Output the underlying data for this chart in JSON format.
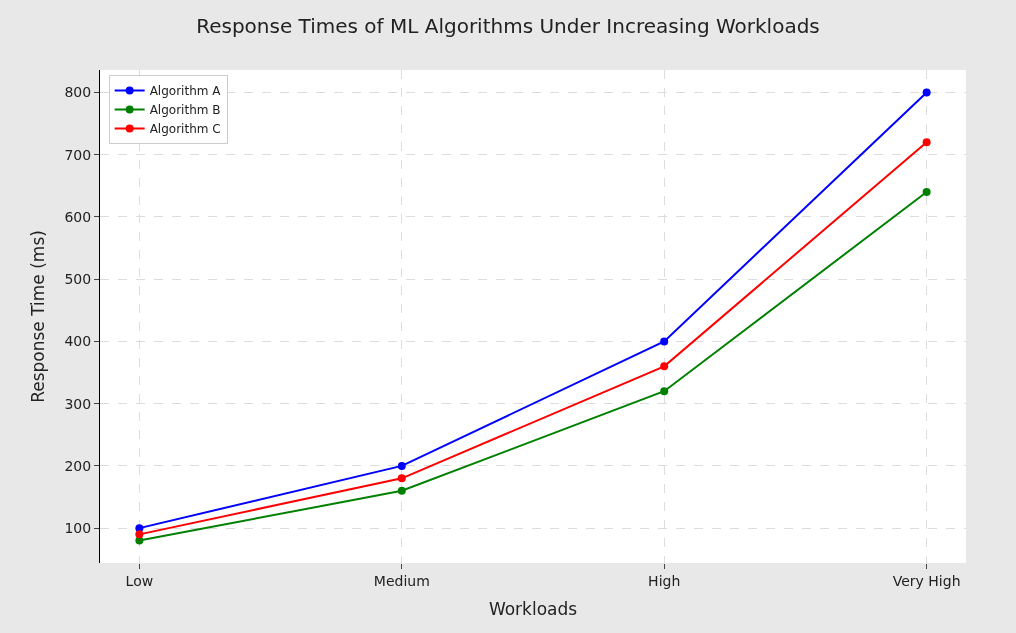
{
  "chart_data": {
    "type": "line",
    "title": "Response Times of ML Algorithms Under Increasing Workloads",
    "xlabel": "Workloads",
    "ylabel": "Response Time (ms)",
    "categories": [
      "Low",
      "Medium",
      "High",
      "Very High"
    ],
    "series": [
      {
        "name": "Algorithm A",
        "color": "#0000ff",
        "values": [
          100,
          200,
          400,
          800
        ]
      },
      {
        "name": "Algorithm B",
        "color": "#008000",
        "values": [
          80,
          160,
          320,
          640
        ]
      },
      {
        "name": "Algorithm C",
        "color": "#ff0000",
        "values": [
          90,
          180,
          360,
          720
        ]
      }
    ],
    "ylim": [
      44,
      836
    ],
    "yticks": [
      100,
      200,
      300,
      400,
      500,
      600,
      700,
      800
    ],
    "grid": true,
    "legend": "top left",
    "marker": "circle",
    "line_style": "solid"
  }
}
